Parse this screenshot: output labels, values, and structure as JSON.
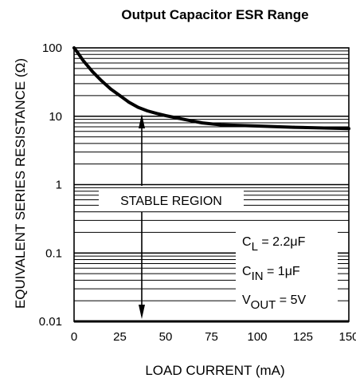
{
  "chart_data": {
    "type": "line",
    "title": "Output Capacitor ESR Range",
    "xlabel": "LOAD CURRENT (mA)",
    "ylabel": "EQUIVALENT SERIES RESISTANCE (Ω)",
    "x_ticks": [
      "0",
      "25",
      "50",
      "75",
      "100",
      "125",
      "150"
    ],
    "y_ticks": [
      "100",
      "10",
      "1",
      "0.1",
      "0.01"
    ],
    "xlim": [
      0,
      150
    ],
    "ylim": [
      0.01,
      100
    ],
    "y_scale": "log",
    "grid": true,
    "series": [
      {
        "x": [
          0,
          2,
          5,
          10,
          15,
          20,
          25,
          30,
          35,
          40,
          45,
          50,
          60,
          70,
          80,
          100,
          120,
          150
        ],
        "y": [
          100,
          85,
          65,
          45,
          33,
          25,
          20,
          16,
          13.5,
          12,
          11,
          10.2,
          9,
          8,
          7.5,
          7.2,
          6.9,
          6.6
        ]
      }
    ],
    "annotations": {
      "region_label": "STABLE REGION",
      "conditions": [
        {
          "main": "C",
          "sub": "L",
          "rest": " = 2.2μF"
        },
        {
          "main": "C",
          "sub": "IN",
          "rest": " = 1μF"
        },
        {
          "main": "V",
          "sub": "OUT",
          "rest": " = 5V"
        }
      ]
    }
  }
}
